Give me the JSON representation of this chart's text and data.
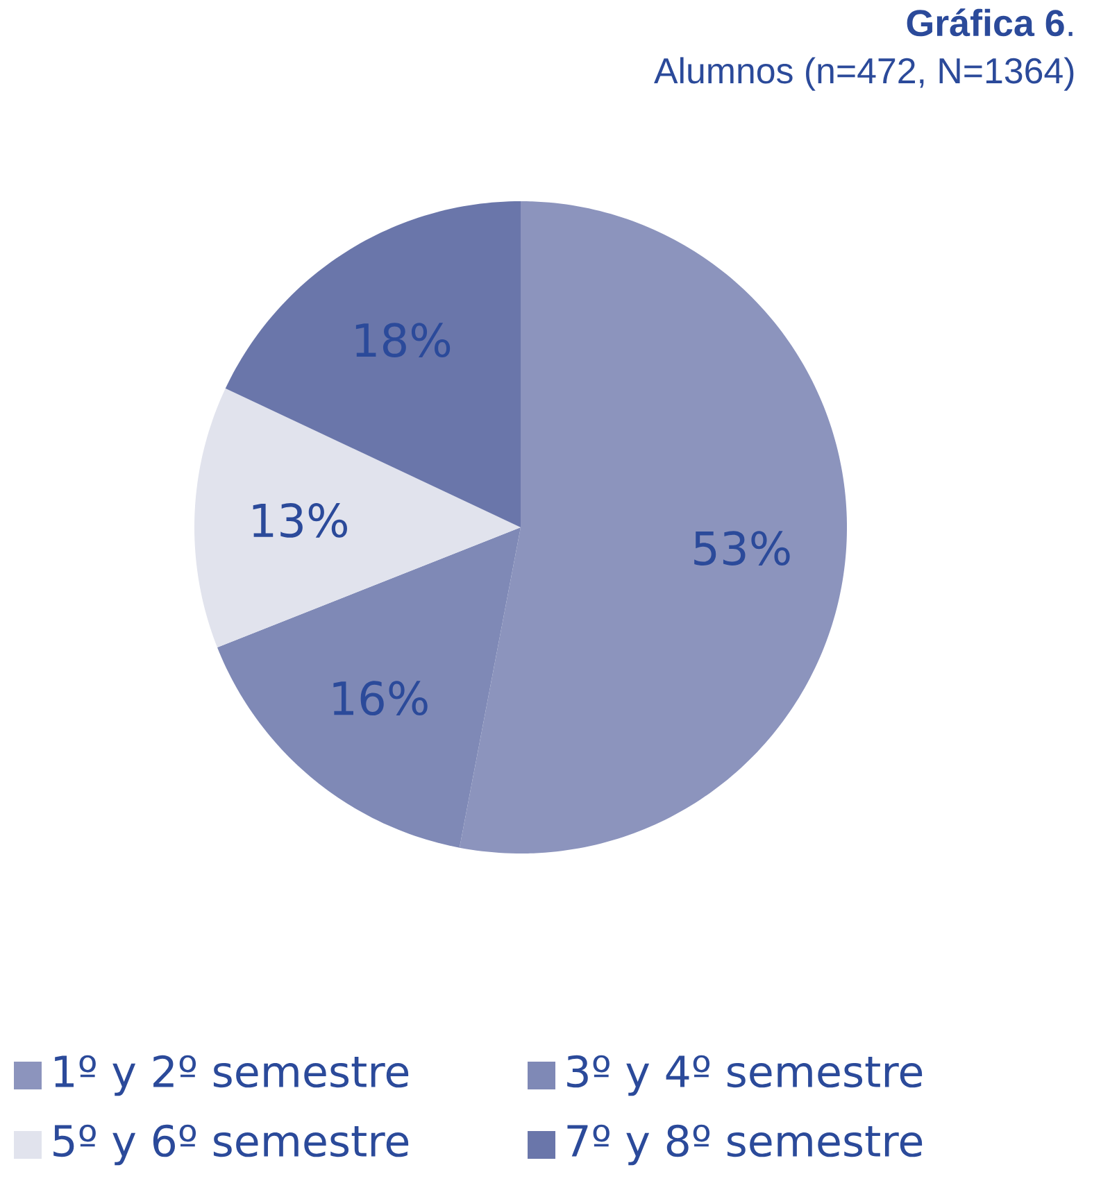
{
  "chart_data": {
    "type": "pie",
    "title": "**Gráfica 6**.",
    "subtitle": "Alumnos (n=472, N=1364)",
    "categories": [
      "1º y 2º semestre",
      "3º y 4º semestre",
      "5º y 6º semestre",
      "7º y 8º semestre"
    ],
    "values": [
      53,
      16,
      13,
      18
    ],
    "value_labels": [
      "53%",
      "16%",
      "13%",
      "18%"
    ],
    "colors": [
      "#8c94bd",
      "#7f89b6",
      "#e1e3ed",
      "#6a76aa"
    ],
    "legend": "bottom"
  }
}
